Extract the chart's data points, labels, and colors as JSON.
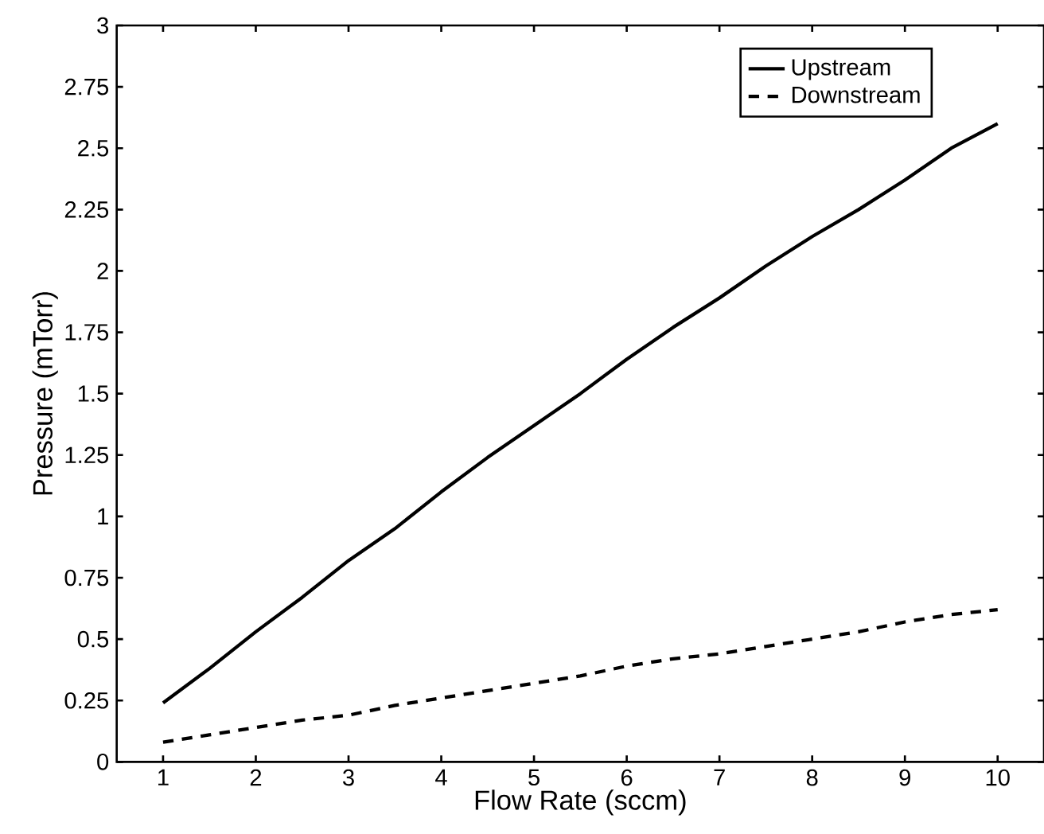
{
  "chart_data": {
    "type": "line",
    "xlabel": "Flow Rate (sccm)",
    "ylabel": "Pressure (mTorr)",
    "xlim": [
      0.5,
      10.5
    ],
    "xticks": [
      1,
      2,
      3,
      4,
      5,
      6,
      7,
      8,
      9,
      10
    ],
    "ylim": [
      0,
      3
    ],
    "yticks": [
      0,
      0.25,
      0.5,
      0.75,
      1,
      1.25,
      1.5,
      1.75,
      2,
      2.25,
      2.5,
      2.75,
      3
    ],
    "x": [
      1,
      1.5,
      2,
      2.5,
      3,
      3.5,
      4,
      4.5,
      5,
      5.5,
      6,
      6.5,
      7,
      7.5,
      8,
      8.5,
      9,
      9.5,
      10
    ],
    "legend": "top right",
    "grid": false,
    "marker": "none",
    "series": [
      {
        "name": "Upstream",
        "color": "#000000",
        "line_style": "solid",
        "values": [
          0.24,
          0.38,
          0.53,
          0.67,
          0.82,
          0.95,
          1.1,
          1.24,
          1.37,
          1.5,
          1.64,
          1.77,
          1.89,
          2.02,
          2.14,
          2.25,
          2.37,
          2.5,
          2.6
        ]
      },
      {
        "name": "Downstream",
        "color": "#000000",
        "line_style": "dashed",
        "values": [
          0.08,
          0.11,
          0.14,
          0.17,
          0.19,
          0.23,
          0.26,
          0.29,
          0.32,
          0.35,
          0.39,
          0.42,
          0.44,
          0.47,
          0.5,
          0.53,
          0.57,
          0.6,
          0.62
        ]
      }
    ]
  }
}
